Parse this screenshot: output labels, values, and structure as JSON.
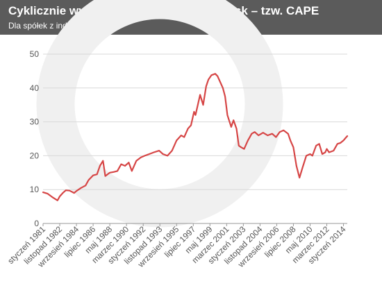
{
  "header": {
    "title": "Cyklicznie wyrównany wskaźnik cena/zysk – tzw. CAPE",
    "subtitle": "Dla spółek z indeksu S&P500"
  },
  "colors": {
    "line": "#d64545",
    "header_bg": "#5b5b5b",
    "grid": "#d9d9d9",
    "watermark": "#f0f0f0"
  },
  "chart_data": {
    "type": "line",
    "title": "Cyklicznie wyrównany wskaźnik cena/zysk – tzw. CAPE",
    "subtitle": "Dla spółek z indeksu S&P500",
    "xlabel": "",
    "ylabel": "",
    "ylim": [
      0,
      50
    ],
    "xlim": [
      "1981-01",
      "2014-06"
    ],
    "yticks": [
      0,
      10,
      20,
      30,
      40,
      50
    ],
    "grid": true,
    "legend": "none",
    "xtick_labels": [
      {
        "date": "1981-01",
        "label": "styczeń 1981"
      },
      {
        "date": "1982-11",
        "label": "listopad 1982"
      },
      {
        "date": "1984-09",
        "label": "wrzesień 1984"
      },
      {
        "date": "1986-07",
        "label": "lipiec 1986"
      },
      {
        "date": "1988-05",
        "label": "maj 1988"
      },
      {
        "date": "1990-03",
        "label": "marzec 1990"
      },
      {
        "date": "1992-01",
        "label": "styczeń 1992"
      },
      {
        "date": "1993-11",
        "label": "listopad 1993"
      },
      {
        "date": "1995-09",
        "label": "wrzesień 1995"
      },
      {
        "date": "1997-07",
        "label": "lipiec 1997"
      },
      {
        "date": "1999-05",
        "label": "maj 1999"
      },
      {
        "date": "2001-03",
        "label": "marzec 2001"
      },
      {
        "date": "2003-01",
        "label": "styczeń 2003"
      },
      {
        "date": "2004-11",
        "label": "listopad 2004"
      },
      {
        "date": "2006-09",
        "label": "wrzesień 2006"
      },
      {
        "date": "2008-07",
        "label": "lipiec 2008"
      },
      {
        "date": "2010-05",
        "label": "maj 2010"
      },
      {
        "date": "2012-03",
        "label": "marzec 2012"
      },
      {
        "date": "2014-01",
        "label": "styczeń 2014"
      }
    ],
    "series": [
      {
        "color": "#d64545",
        "points": [
          [
            "1981-01",
            9.2
          ],
          [
            "1981-07",
            8.8
          ],
          [
            "1982-01",
            7.8
          ],
          [
            "1982-08",
            6.8
          ],
          [
            "1982-11",
            8.0
          ],
          [
            "1983-03",
            9.0
          ],
          [
            "1983-07",
            9.8
          ],
          [
            "1983-12",
            9.7
          ],
          [
            "1984-06",
            9.0
          ],
          [
            "1984-09",
            9.6
          ],
          [
            "1985-03",
            10.5
          ],
          [
            "1985-09",
            11.2
          ],
          [
            "1986-01",
            12.8
          ],
          [
            "1986-07",
            14.2
          ],
          [
            "1986-12",
            14.5
          ],
          [
            "1987-04",
            17.0
          ],
          [
            "1987-08",
            18.5
          ],
          [
            "1987-11",
            14.0
          ],
          [
            "1988-05",
            15.0
          ],
          [
            "1988-10",
            15.2
          ],
          [
            "1989-03",
            15.5
          ],
          [
            "1989-08",
            17.5
          ],
          [
            "1990-01",
            17.0
          ],
          [
            "1990-06",
            18.0
          ],
          [
            "1990-10",
            15.5
          ],
          [
            "1991-04",
            18.5
          ],
          [
            "1991-10",
            19.5
          ],
          [
            "1992-03",
            20.0
          ],
          [
            "1992-09",
            20.5
          ],
          [
            "1993-03",
            21.0
          ],
          [
            "1993-10",
            21.5
          ],
          [
            "1994-03",
            20.5
          ],
          [
            "1994-09",
            20.0
          ],
          [
            "1995-03",
            21.5
          ],
          [
            "1995-09",
            24.5
          ],
          [
            "1996-03",
            26.0
          ],
          [
            "1996-07",
            25.5
          ],
          [
            "1996-12",
            28.0
          ],
          [
            "1997-04",
            29.0
          ],
          [
            "1997-08",
            33.0
          ],
          [
            "1997-10",
            32.0
          ],
          [
            "1998-04",
            38.0
          ],
          [
            "1998-08",
            35.0
          ],
          [
            "1998-12",
            40.5
          ],
          [
            "1999-03",
            42.5
          ],
          [
            "1999-07",
            43.8
          ],
          [
            "1999-12",
            44.2
          ],
          [
            "2000-03",
            43.5
          ],
          [
            "2000-06",
            42.0
          ],
          [
            "2000-10",
            40.0
          ],
          [
            "2001-01",
            37.5
          ],
          [
            "2001-04",
            32.0
          ],
          [
            "2001-09",
            28.5
          ],
          [
            "2001-12",
            30.5
          ],
          [
            "2002-04",
            28.0
          ],
          [
            "2002-07",
            23.0
          ],
          [
            "2002-10",
            22.5
          ],
          [
            "2003-02",
            22.0
          ],
          [
            "2003-07",
            24.5
          ],
          [
            "2003-12",
            26.5
          ],
          [
            "2004-04",
            27.0
          ],
          [
            "2004-09",
            26.0
          ],
          [
            "2005-03",
            26.8
          ],
          [
            "2005-09",
            26.0
          ],
          [
            "2006-03",
            26.5
          ],
          [
            "2006-08",
            25.5
          ],
          [
            "2007-01",
            27.0
          ],
          [
            "2007-06",
            27.5
          ],
          [
            "2007-12",
            26.5
          ],
          [
            "2008-03",
            24.5
          ],
          [
            "2008-07",
            22.5
          ],
          [
            "2008-11",
            17.0
          ],
          [
            "2009-03",
            13.5
          ],
          [
            "2009-07",
            16.5
          ],
          [
            "2009-12",
            20.0
          ],
          [
            "2010-05",
            20.5
          ],
          [
            "2010-08",
            20.0
          ],
          [
            "2011-01",
            23.0
          ],
          [
            "2011-05",
            23.5
          ],
          [
            "2011-09",
            20.5
          ],
          [
            "2012-01",
            21.0
          ],
          [
            "2012-03",
            22.0
          ],
          [
            "2012-06",
            21.0
          ],
          [
            "2012-12",
            21.5
          ],
          [
            "2013-05",
            23.5
          ],
          [
            "2013-09",
            23.8
          ],
          [
            "2014-01",
            24.5
          ],
          [
            "2014-04",
            25.3
          ],
          [
            "2014-06",
            25.8
          ]
        ]
      }
    ]
  }
}
